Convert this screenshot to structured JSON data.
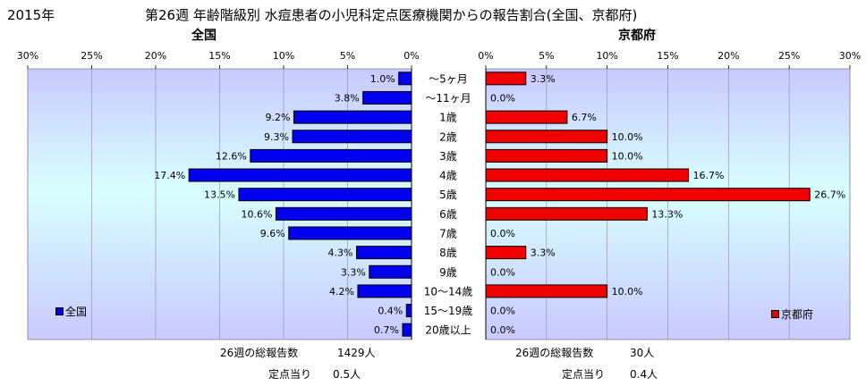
{
  "header": {
    "year": "2015年",
    "title": "第26週 年齢階級別 水痘患者の小児科定点医療機関からの報告割合(全国、京都府)"
  },
  "chart_data": {
    "type": "bar",
    "orientation": "horizontal",
    "categories": [
      "～5ヶ月",
      "～11ヶ月",
      "1歳",
      "2歳",
      "3歳",
      "4歳",
      "5歳",
      "6歳",
      "7歳",
      "8歳",
      "9歳",
      "10～14歳",
      "15～19歳",
      "20歳以上"
    ],
    "panels": [
      {
        "panel_title": "全国",
        "legend": "全国",
        "color": "#0000ee",
        "xlim": [
          0,
          30
        ],
        "ticks": [
          "30%",
          "25%",
          "20%",
          "15%",
          "10%",
          "5%",
          "0%"
        ],
        "values": [
          1.0,
          3.8,
          9.2,
          9.3,
          12.6,
          17.4,
          13.5,
          10.6,
          9.6,
          4.3,
          3.3,
          4.2,
          0.4,
          0.7
        ],
        "labels": [
          "1.0%",
          "3.8%",
          "9.2%",
          "9.3%",
          "12.6%",
          "17.4%",
          "13.5%",
          "10.6%",
          "9.6%",
          "4.3%",
          "3.3%",
          "4.2%",
          "0.4%",
          "0.7%"
        ]
      },
      {
        "panel_title": "京都府",
        "legend": "京都府",
        "color": "#ee0000",
        "xlim": [
          0,
          30
        ],
        "ticks": [
          "0%",
          "5%",
          "10%",
          "15%",
          "20%",
          "25%",
          "30%"
        ],
        "values": [
          3.3,
          0.0,
          6.7,
          10.0,
          10.0,
          16.7,
          26.7,
          13.3,
          0.0,
          3.3,
          0.0,
          10.0,
          0.0,
          0.0
        ],
        "labels": [
          "3.3%",
          "0.0%",
          "6.7%",
          "10.0%",
          "10.0%",
          "16.7%",
          "26.7%",
          "13.3%",
          "0.0%",
          "3.3%",
          "0.0%",
          "10.0%",
          "0.0%",
          "0.0%"
        ]
      }
    ]
  },
  "footer": {
    "national_total_label": "26週の総報告数",
    "national_total_value": "1429人",
    "national_per_label": "定点当り",
    "national_per_value": "0.5人",
    "kyoto_total_label": "26週の総報告数",
    "kyoto_total_value": "30人",
    "kyoto_per_label": "定点当り",
    "kyoto_per_value": "0.4人"
  }
}
